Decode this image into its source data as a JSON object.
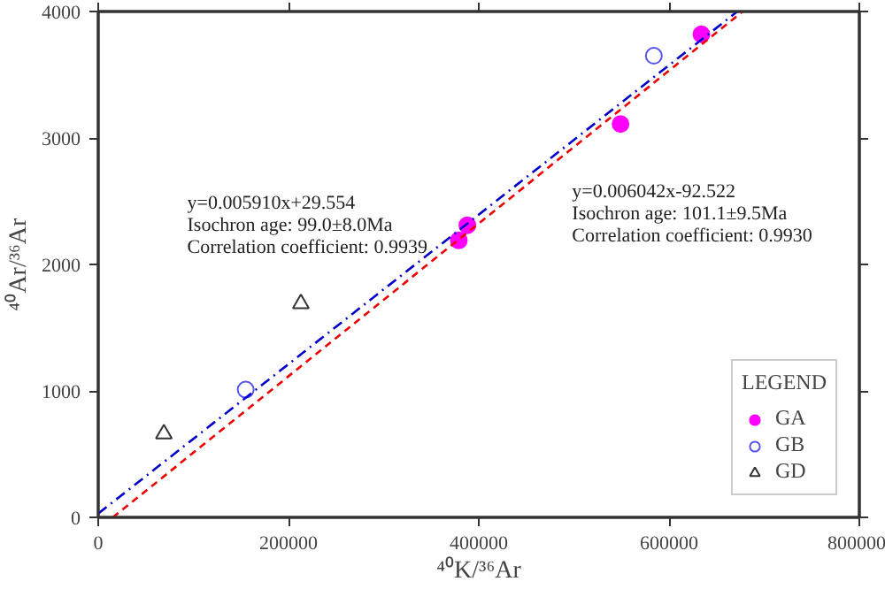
{
  "chart_data": {
    "type": "scatter",
    "xlabel": "⁴⁰K/³⁶Ar",
    "ylabel": "⁴⁰Ar/³⁶Ar",
    "legend_title": "LEGEND",
    "legend": "bottom right",
    "grid": false,
    "xlim": [
      0,
      800000
    ],
    "xticks": [
      0,
      200000,
      400000,
      600000,
      800000
    ],
    "ylim": [
      0,
      4000
    ],
    "yticks": [
      0,
      1000,
      2000,
      3000,
      4000
    ],
    "series": [
      {
        "name": "GA",
        "color": "#ff00ff",
        "marker": "circle",
        "x": [
          379000,
          388000,
          549000,
          634000
        ],
        "values": [
          2190,
          2310,
          3110,
          3820
        ]
      },
      {
        "name": "GB",
        "color": "#5555ee",
        "marker": "circle",
        "x": [
          155000,
          584000
        ],
        "values": [
          1010,
          3650
        ]
      },
      {
        "name": "GD",
        "color": "#333333",
        "marker": "triangle",
        "x": [
          69000,
          213000
        ],
        "values": [
          660,
          1690
        ]
      },
      {
        "type": "line",
        "color": "#0000cc",
        "line_style": "dashdot",
        "x": [
          0,
          671800
        ],
        "values": [
          30,
          4000
        ]
      },
      {
        "type": "line",
        "color": "#ee0000",
        "line_style": "dashed",
        "x": [
          15313,
          677360
        ],
        "values": [
          0,
          4000
        ]
      }
    ],
    "annotations": [
      {
        "text": "y=0.005910x+29.554\nIsochron age: 99.0±8.0Ma\nCorrelation coefficient: 0.9939",
        "x": 367000,
        "y": 2200
      },
      {
        "text": "y=0.006042x-92.522\nIsochron age: 101.1±9.5Ma\nCorrelation coefficient: 0.9930",
        "x": 464500,
        "y": 2714
      }
    ]
  }
}
